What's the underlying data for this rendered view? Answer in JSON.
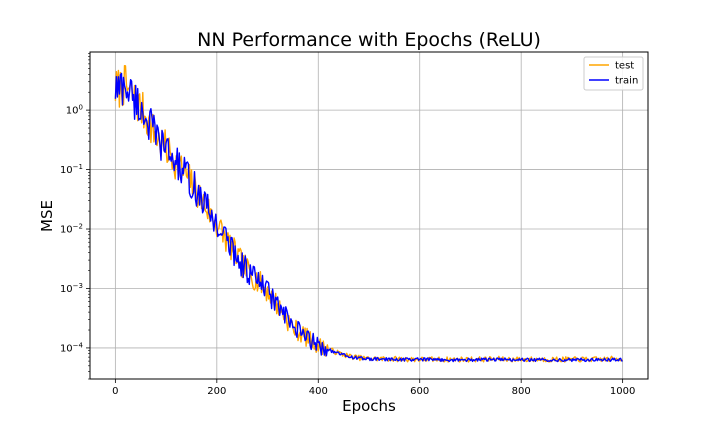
{
  "chart_data": {
    "type": "line",
    "title": "NN Performance with Epochs (ReLU)",
    "xlabel": "Epochs",
    "ylabel": "MSE",
    "xlim": [
      -50,
      1050
    ],
    "ylim": [
      3e-05,
      9.5
    ],
    "yscale": "log",
    "grid": true,
    "legend_position": "top-right",
    "x_ticks": [
      0,
      200,
      400,
      600,
      800,
      1000
    ],
    "x_tick_labels": [
      "0",
      "200",
      "400",
      "600",
      "800",
      "1000"
    ],
    "y_ticks": [
      1,
      0.1,
      0.01,
      0.001,
      0.0001
    ],
    "y_tick_labels": [
      {
        "base": "10",
        "exp": "0"
      },
      {
        "base": "10",
        "exp": "−1"
      },
      {
        "base": "10",
        "exp": "−2"
      },
      {
        "base": "10",
        "exp": "−3"
      },
      {
        "base": "10",
        "exp": "−4"
      }
    ],
    "series": [
      {
        "name": "test",
        "color": "#ffa500",
        "x": [
          0,
          20,
          40,
          60,
          80,
          100,
          150,
          200,
          250,
          300,
          350,
          400,
          420,
          440,
          460,
          480,
          500,
          550,
          600,
          650,
          700,
          750,
          800,
          850,
          900,
          950,
          1000
        ],
        "values": [
          2.2,
          2.6,
          1.4,
          0.8,
          0.35,
          0.22,
          0.06,
          0.012,
          0.0025,
          0.0009,
          0.00022,
          0.00011,
          9.5e-05,
          8.2e-05,
          7.3e-05,
          6.8e-05,
          6.6e-05,
          6.5e-05,
          6.4e-05,
          6.4e-05,
          6.4e-05,
          6.5e-05,
          6.4e-05,
          6.4e-05,
          6.4e-05,
          6.4e-05,
          6.6e-05
        ]
      },
      {
        "name": "train",
        "color": "#0000ff",
        "x": [
          0,
          20,
          40,
          60,
          80,
          100,
          150,
          200,
          250,
          300,
          350,
          400,
          420,
          440,
          460,
          480,
          500,
          550,
          600,
          650,
          700,
          750,
          800,
          850,
          900,
          950,
          1000
        ],
        "values": [
          2.2,
          2.6,
          1.4,
          0.8,
          0.35,
          0.22,
          0.06,
          0.012,
          0.0025,
          0.0009,
          0.00022,
          0.00011,
          9.4e-05,
          8e-05,
          7.2e-05,
          6.7e-05,
          6.5e-05,
          6.4e-05,
          6.4e-05,
          6.3e-05,
          6.3e-05,
          6.4e-05,
          6.3e-05,
          6.3e-05,
          6.3e-05,
          6.3e-05,
          6.4e-05
        ]
      }
    ]
  }
}
